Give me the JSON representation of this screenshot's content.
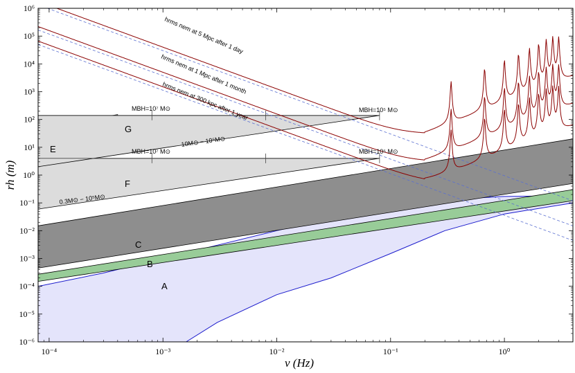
{
  "chart_data": {
    "type": "line",
    "xscale": "log",
    "yscale": "log",
    "xlim": [
      8e-05,
      4
    ],
    "ylim": [
      1e-06,
      1000000.0
    ],
    "xlabel": "ν (Hz)",
    "ylabel": "rh (m)",
    "x_ticks": [
      {
        "value": 0.0001,
        "label": "10⁻⁴"
      },
      {
        "value": 0.001,
        "label": "10⁻³"
      },
      {
        "value": 0.01,
        "label": "10⁻²"
      },
      {
        "value": 0.1,
        "label": "10⁻¹"
      },
      {
        "value": 1,
        "label": "10⁰"
      }
    ],
    "y_ticks": [
      {
        "value": 1e-06,
        "label": "10⁻⁶"
      },
      {
        "value": 1e-05,
        "label": "10⁻⁵"
      },
      {
        "value": 0.0001,
        "label": "10⁻⁴"
      },
      {
        "value": 0.001,
        "label": "10⁻³"
      },
      {
        "value": 0.01,
        "label": "10⁻²"
      },
      {
        "value": 0.1,
        "label": "10⁻¹"
      },
      {
        "value": 1,
        "label": "10⁰"
      },
      {
        "value": 10,
        "label": "10¹"
      },
      {
        "value": 100,
        "label": "10²"
      },
      {
        "value": 1000,
        "label": "10³"
      },
      {
        "value": 10000,
        "label": "10⁴"
      },
      {
        "value": 100000,
        "label": "10⁵"
      },
      {
        "value": 1000000,
        "label": "10⁶"
      }
    ],
    "regions": [
      {
        "label": "A",
        "color": "#e4e4fb",
        "edge": "#1a1acc",
        "curve": [
          [
            8e-05,
            0.0001
          ],
          [
            0.0003,
            0.0003
          ],
          [
            0.001,
            0.001
          ],
          [
            0.003,
            0.003
          ],
          [
            0.01,
            0.01
          ],
          [
            0.03,
            0.028
          ],
          [
            0.1,
            0.075
          ],
          [
            0.3,
            0.13
          ],
          [
            1,
            0.17
          ],
          [
            4,
            0.18
          ]
        ],
        "lower": [
          [
            8e-05,
            1e-06
          ],
          [
            0.0016,
            1e-06
          ],
          [
            0.003,
            5e-06
          ],
          [
            0.01,
            5e-05
          ],
          [
            0.03,
            0.0002
          ],
          [
            0.1,
            0.0015
          ],
          [
            0.3,
            0.01
          ],
          [
            1,
            0.04
          ],
          [
            4,
            0.1
          ]
        ]
      },
      {
        "label": "B",
        "color": "#98cc98",
        "edge": "#000000",
        "lower": [
          [
            8e-05,
            0.00015
          ],
          [
            4,
            0.12
          ]
        ],
        "upper": [
          [
            8e-05,
            0.00027
          ],
          [
            4,
            0.3
          ]
        ]
      },
      {
        "label": "C",
        "color": "#8e8e8e",
        "edge": "#000000",
        "lower": [
          [
            8e-05,
            0.00045
          ],
          [
            4,
            0.5
          ]
        ],
        "upper": [
          [
            8e-05,
            0.015
          ],
          [
            4,
            20
          ]
        ]
      },
      {
        "label": "E",
        "color": "#8e8e8e",
        "edge": "#000000",
        "polygon": [
          [
            8e-05,
            2.5
          ],
          [
            0.0004,
            7
          ],
          [
            0.0004,
            150
          ],
          [
            8e-05,
            50
          ]
        ]
      },
      {
        "label": "F",
        "color": "#dcdcdc",
        "edge": "#000000",
        "polygon": [
          [
            8e-05,
            0.06
          ],
          [
            0.08,
            4
          ],
          [
            0.08,
            4
          ],
          [
            8e-05,
            4
          ]
        ]
      },
      {
        "label": "G",
        "color": "#dcdcdc",
        "edge": "#000000",
        "polygon": [
          [
            8e-05,
            2
          ],
          [
            0.08,
            140
          ],
          [
            8e-05,
            140
          ]
        ]
      }
    ],
    "mass_brackets": [
      {
        "y": 140,
        "x": [
          0.0008,
          0.008,
          0.08
        ],
        "left_label": "MBH=10⁷ M⊙",
        "right_label": "MBH=10⁵ M⊙"
      },
      {
        "y": 4,
        "x": [
          0.0008,
          0.008,
          0.08
        ],
        "left_label": "MBH=10⁷ M⊙",
        "right_label": "MBH=10⁵ M⊙"
      }
    ],
    "range_labels": [
      "10M⊙ − 10⁵M⊙",
      "0.3M⊙ − 10⁵M⊙"
    ],
    "series": [
      {
        "name": "hrms nem at 5 Mpc after 1 day",
        "color": "#8b0000",
        "x": [
          0.00015,
          0.001,
          0.01,
          0.1,
          0.2
        ],
        "y": [
          1000000.0,
          40000.0,
          1500.0,
          50,
          30
        ]
      },
      {
        "name": "hrms nem at 1 Mpc after 1 month",
        "color": "#8b0000",
        "x": [
          0.0001,
          0.001,
          0.01,
          0.1,
          0.2
        ],
        "y": [
          200000.0,
          5000.0,
          150.0,
          4,
          3
        ]
      },
      {
        "name": "hrms nem at 300 kpc after 1 year",
        "color": "#8b0000",
        "x": [
          0.0001,
          0.001,
          0.01,
          0.1,
          0.2
        ],
        "y": [
          60000.0,
          1500.0,
          40,
          1,
          0.5
        ]
      }
    ],
    "annotations": [
      "hrms nem at 5 Mpc after 1 day",
      "hrms nem at 1 Mpc after 1 month",
      "hrms nem at 300 kpc after 1 year"
    ]
  }
}
